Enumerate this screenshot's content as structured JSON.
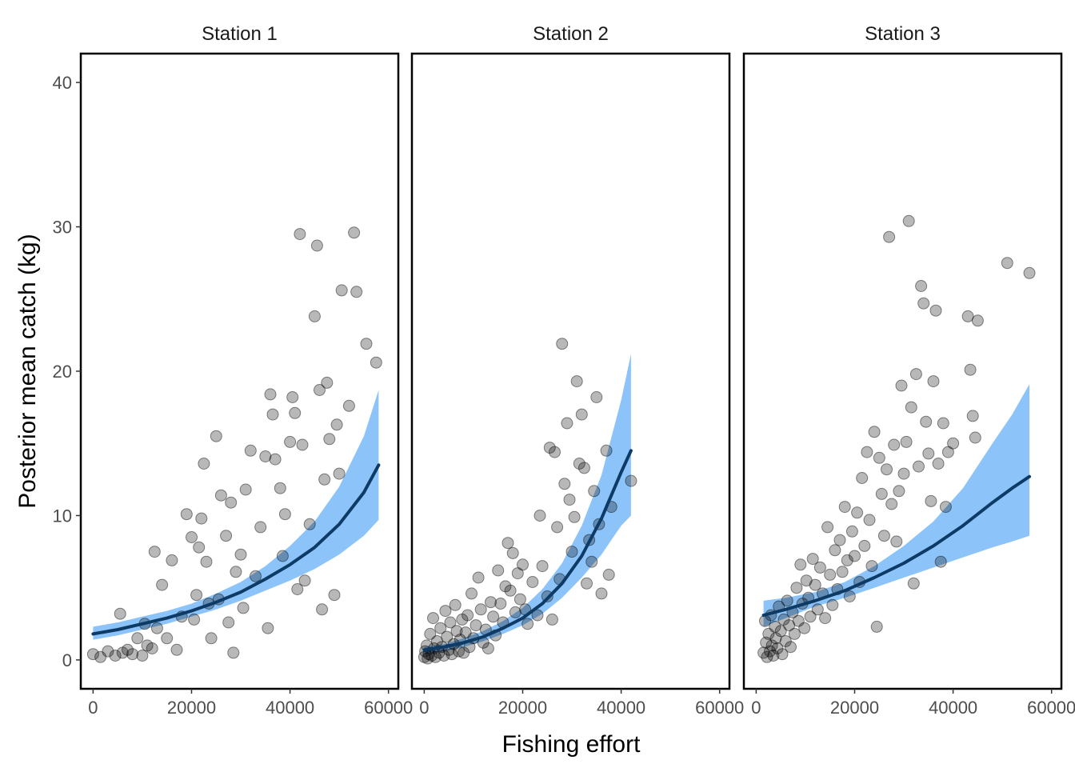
{
  "chart_data": {
    "type": "scatter",
    "xlabel": "Fishing effort",
    "ylabel": "Posterior mean catch (kg)",
    "xlim": [
      -2500,
      62000
    ],
    "ylim": [
      -2,
      42
    ],
    "x_ticks": [
      0,
      20000,
      40000,
      60000
    ],
    "x_tick_labels": [
      "0",
      "20000",
      "40000",
      "60000"
    ],
    "y_ticks": [
      0,
      10,
      20,
      30,
      40
    ],
    "y_tick_labels": [
      "0",
      "10",
      "20",
      "30",
      "40"
    ],
    "grid": false,
    "point_color": "#000000",
    "point_opacity": 0.28,
    "band_color": "#8cc4fa",
    "line_color": "#0d3b66",
    "facets": [
      {
        "label": "Station 1",
        "fit": {
          "x": [
            0,
            5000,
            10000,
            15000,
            20000,
            25000,
            30000,
            35000,
            40000,
            45000,
            50000,
            55000,
            58000
          ],
          "y": [
            1.8,
            2.1,
            2.5,
            2.9,
            3.4,
            4.0,
            4.7,
            5.6,
            6.6,
            7.8,
            9.4,
            11.6,
            13.5
          ],
          "lower": [
            1.4,
            1.7,
            2.1,
            2.5,
            3.0,
            3.5,
            4.1,
            4.8,
            5.5,
            6.3,
            7.3,
            8.6,
            9.7
          ],
          "upper": [
            2.3,
            2.6,
            3.0,
            3.4,
            3.9,
            4.6,
            5.4,
            6.5,
            7.9,
            9.6,
            12.0,
            15.5,
            18.7
          ]
        },
        "points": [
          [
            0,
            0.4
          ],
          [
            1500,
            0.2
          ],
          [
            3000,
            0.6
          ],
          [
            4500,
            0.3
          ],
          [
            5500,
            3.2
          ],
          [
            6000,
            0.5
          ],
          [
            7000,
            0.7
          ],
          [
            8000,
            0.4
          ],
          [
            9000,
            1.5
          ],
          [
            10000,
            0.3
          ],
          [
            10500,
            2.5
          ],
          [
            11000,
            1.0
          ],
          [
            12000,
            0.8
          ],
          [
            12500,
            7.5
          ],
          [
            13000,
            2.2
          ],
          [
            14000,
            5.2
          ],
          [
            15000,
            1.5
          ],
          [
            16000,
            6.9
          ],
          [
            17000,
            0.7
          ],
          [
            18000,
            3.0
          ],
          [
            19000,
            10.1
          ],
          [
            20000,
            8.5
          ],
          [
            20500,
            2.8
          ],
          [
            21000,
            4.5
          ],
          [
            21500,
            7.8
          ],
          [
            22000,
            9.8
          ],
          [
            22500,
            13.6
          ],
          [
            23000,
            6.8
          ],
          [
            23500,
            3.9
          ],
          [
            24000,
            1.5
          ],
          [
            25000,
            15.5
          ],
          [
            25500,
            4.2
          ],
          [
            26000,
            11.4
          ],
          [
            27000,
            8.6
          ],
          [
            27500,
            2.6
          ],
          [
            28000,
            10.9
          ],
          [
            28500,
            0.5
          ],
          [
            29000,
            6.1
          ],
          [
            30000,
            7.3
          ],
          [
            30500,
            3.6
          ],
          [
            31000,
            11.8
          ],
          [
            32000,
            14.5
          ],
          [
            33000,
            5.8
          ],
          [
            34000,
            9.2
          ],
          [
            35000,
            14.1
          ],
          [
            35500,
            2.2
          ],
          [
            36000,
            18.4
          ],
          [
            36500,
            17.0
          ],
          [
            37000,
            13.9
          ],
          [
            38000,
            11.9
          ],
          [
            38500,
            7.2
          ],
          [
            39000,
            10.1
          ],
          [
            40000,
            15.1
          ],
          [
            40500,
            18.2
          ],
          [
            41000,
            17.1
          ],
          [
            41500,
            4.9
          ],
          [
            42000,
            29.5
          ],
          [
            42500,
            14.9
          ],
          [
            43000,
            5.5
          ],
          [
            44000,
            9.4
          ],
          [
            45000,
            23.8
          ],
          [
            45500,
            28.7
          ],
          [
            46000,
            18.7
          ],
          [
            46500,
            3.5
          ],
          [
            47000,
            12.5
          ],
          [
            47500,
            19.2
          ],
          [
            48000,
            15.3
          ],
          [
            49000,
            4.5
          ],
          [
            49500,
            16.3
          ],
          [
            50000,
            12.9
          ],
          [
            50500,
            25.6
          ],
          [
            52000,
            17.6
          ],
          [
            53000,
            29.6
          ],
          [
            53500,
            25.5
          ],
          [
            55500,
            21.9
          ],
          [
            57500,
            20.6
          ]
        ]
      },
      {
        "label": "Station 2",
        "fit": {
          "x": [
            0,
            4000,
            8000,
            12000,
            16000,
            20000,
            24000,
            28000,
            32000,
            36000,
            40000,
            42000
          ],
          "y": [
            0.7,
            0.9,
            1.2,
            1.6,
            2.2,
            2.9,
            3.9,
            5.3,
            7.2,
            9.8,
            13.0,
            14.5
          ],
          "lower": [
            0.4,
            0.6,
            0.9,
            1.3,
            1.8,
            2.4,
            3.2,
            4.3,
            5.7,
            7.3,
            9.3,
            10.0
          ],
          "upper": [
            0.9,
            1.1,
            1.5,
            2.0,
            2.7,
            3.6,
            4.9,
            6.7,
            9.3,
            12.8,
            18.0,
            21.2
          ]
        },
        "points": [
          [
            0,
            0.2
          ],
          [
            200,
            0.6
          ],
          [
            500,
            1.0
          ],
          [
            700,
            0.1
          ],
          [
            900,
            0.4
          ],
          [
            1200,
            1.8
          ],
          [
            1500,
            0.3
          ],
          [
            1800,
            2.9
          ],
          [
            2000,
            0.8
          ],
          [
            2300,
            0.2
          ],
          [
            2600,
            1.3
          ],
          [
            3000,
            0.5
          ],
          [
            3300,
            2.2
          ],
          [
            3600,
            0.9
          ],
          [
            4000,
            0.3
          ],
          [
            4300,
            3.4
          ],
          [
            4600,
            1.6
          ],
          [
            5000,
            0.7
          ],
          [
            5300,
            2.6
          ],
          [
            5600,
            0.4
          ],
          [
            6000,
            1.1
          ],
          [
            6300,
            3.8
          ],
          [
            6600,
            2.0
          ],
          [
            7000,
            0.6
          ],
          [
            7300,
            1.4
          ],
          [
            7700,
            2.8
          ],
          [
            8000,
            0.5
          ],
          [
            8400,
            1.9
          ],
          [
            8800,
            3.1
          ],
          [
            9200,
            0.9
          ],
          [
            9600,
            4.6
          ],
          [
            10000,
            1.5
          ],
          [
            10500,
            2.4
          ],
          [
            11000,
            5.7
          ],
          [
            11500,
            3.5
          ],
          [
            12000,
            1.2
          ],
          [
            12500,
            2.1
          ],
          [
            13000,
            0.8
          ],
          [
            13500,
            4.0
          ],
          [
            14000,
            3.0
          ],
          [
            14500,
            1.7
          ],
          [
            15000,
            6.2
          ],
          [
            15500,
            3.9
          ],
          [
            16000,
            2.6
          ],
          [
            16500,
            5.1
          ],
          [
            17000,
            8.1
          ],
          [
            17500,
            4.8
          ],
          [
            18000,
            7.4
          ],
          [
            18500,
            3.3
          ],
          [
            19000,
            6.0
          ],
          [
            19500,
            4.2
          ],
          [
            20000,
            6.6
          ],
          [
            20500,
            3.5
          ],
          [
            21000,
            2.5
          ],
          [
            22000,
            5.4
          ],
          [
            23000,
            3.1
          ],
          [
            23500,
            10.0
          ],
          [
            24000,
            6.5
          ],
          [
            25000,
            4.4
          ],
          [
            25500,
            14.7
          ],
          [
            26000,
            2.8
          ],
          [
            26500,
            14.4
          ],
          [
            27000,
            9.2
          ],
          [
            27500,
            5.6
          ],
          [
            28000,
            21.9
          ],
          [
            28500,
            12.2
          ],
          [
            29000,
            16.4
          ],
          [
            29500,
            11.1
          ],
          [
            30000,
            7.5
          ],
          [
            30500,
            9.9
          ],
          [
            31000,
            19.3
          ],
          [
            31500,
            13.6
          ],
          [
            32000,
            17.0
          ],
          [
            32500,
            13.3
          ],
          [
            33000,
            5.3
          ],
          [
            33500,
            8.3
          ],
          [
            34000,
            6.8
          ],
          [
            34500,
            11.7
          ],
          [
            35000,
            18.2
          ],
          [
            35500,
            9.4
          ],
          [
            36000,
            4.6
          ],
          [
            37000,
            14.5
          ],
          [
            37500,
            5.9
          ],
          [
            38000,
            10.6
          ],
          [
            42000,
            12.4
          ]
        ]
      },
      {
        "label": "Station 3",
        "fit": {
          "x": [
            1500,
            6000,
            12000,
            18000,
            24000,
            30000,
            36000,
            42000,
            48000,
            52000,
            55500
          ],
          "y": [
            3.1,
            3.5,
            4.1,
            4.8,
            5.7,
            6.7,
            7.9,
            9.3,
            10.9,
            11.9,
            12.7
          ],
          "lower": [
            2.3,
            2.9,
            3.7,
            4.3,
            5.0,
            5.7,
            6.4,
            7.1,
            7.8,
            8.2,
            8.6
          ],
          "upper": [
            4.1,
            4.3,
            4.7,
            5.4,
            6.5,
            7.9,
            9.6,
            11.9,
            15.0,
            17.0,
            19.1
          ]
        },
        "points": [
          [
            1500,
            0.5
          ],
          [
            1800,
            2.7
          ],
          [
            2000,
            1.2
          ],
          [
            2200,
            0.2
          ],
          [
            2500,
            1.8
          ],
          [
            2800,
            0.6
          ],
          [
            3000,
            3.1
          ],
          [
            3200,
            1.0
          ],
          [
            3500,
            0.3
          ],
          [
            3800,
            2.3
          ],
          [
            4000,
            1.5
          ],
          [
            4300,
            0.8
          ],
          [
            4600,
            3.7
          ],
          [
            5000,
            2.0
          ],
          [
            5300,
            0.4
          ],
          [
            5600,
            2.8
          ],
          [
            6000,
            1.3
          ],
          [
            6300,
            4.1
          ],
          [
            6700,
            2.4
          ],
          [
            7000,
            0.9
          ],
          [
            7400,
            3.3
          ],
          [
            7800,
            1.8
          ],
          [
            8200,
            5.0
          ],
          [
            8600,
            2.7
          ],
          [
            9000,
            6.6
          ],
          [
            9400,
            3.9
          ],
          [
            9800,
            2.2
          ],
          [
            10200,
            5.5
          ],
          [
            10600,
            4.3
          ],
          [
            11000,
            3.0
          ],
          [
            11500,
            7.0
          ],
          [
            12000,
            5.2
          ],
          [
            12500,
            3.5
          ],
          [
            13000,
            6.4
          ],
          [
            13500,
            4.6
          ],
          [
            14000,
            2.9
          ],
          [
            14500,
            9.2
          ],
          [
            15000,
            5.9
          ],
          [
            15500,
            3.8
          ],
          [
            16000,
            7.6
          ],
          [
            16500,
            4.9
          ],
          [
            17000,
            8.3
          ],
          [
            17500,
            6.1
          ],
          [
            18000,
            10.6
          ],
          [
            18500,
            6.9
          ],
          [
            19000,
            4.4
          ],
          [
            19500,
            8.9
          ],
          [
            20000,
            7.2
          ],
          [
            20500,
            10.2
          ],
          [
            21000,
            5.4
          ],
          [
            21500,
            12.6
          ],
          [
            22000,
            7.9
          ],
          [
            22500,
            14.4
          ],
          [
            23000,
            9.7
          ],
          [
            23500,
            6.5
          ],
          [
            24000,
            15.8
          ],
          [
            24500,
            2.3
          ],
          [
            25000,
            14.0
          ],
          [
            25500,
            11.5
          ],
          [
            26000,
            8.6
          ],
          [
            26500,
            13.2
          ],
          [
            27000,
            29.3
          ],
          [
            27500,
            10.8
          ],
          [
            28000,
            14.9
          ],
          [
            28500,
            8.2
          ],
          [
            29000,
            11.7
          ],
          [
            29500,
            19.0
          ],
          [
            30000,
            12.9
          ],
          [
            30500,
            15.1
          ],
          [
            31000,
            30.4
          ],
          [
            31500,
            17.5
          ],
          [
            32000,
            5.3
          ],
          [
            32500,
            19.8
          ],
          [
            33000,
            13.4
          ],
          [
            33500,
            25.9
          ],
          [
            34000,
            24.7
          ],
          [
            34500,
            16.5
          ],
          [
            35000,
            14.3
          ],
          [
            35500,
            11.0
          ],
          [
            36000,
            19.3
          ],
          [
            36500,
            24.2
          ],
          [
            37000,
            13.6
          ],
          [
            37500,
            6.8
          ],
          [
            38000,
            16.4
          ],
          [
            38500,
            10.6
          ],
          [
            39000,
            14.4
          ],
          [
            40000,
            15.0
          ],
          [
            43000,
            23.8
          ],
          [
            43500,
            20.1
          ],
          [
            44000,
            16.9
          ],
          [
            44500,
            15.4
          ],
          [
            45000,
            23.5
          ],
          [
            51000,
            27.5
          ],
          [
            55500,
            26.8
          ]
        ]
      }
    ]
  }
}
